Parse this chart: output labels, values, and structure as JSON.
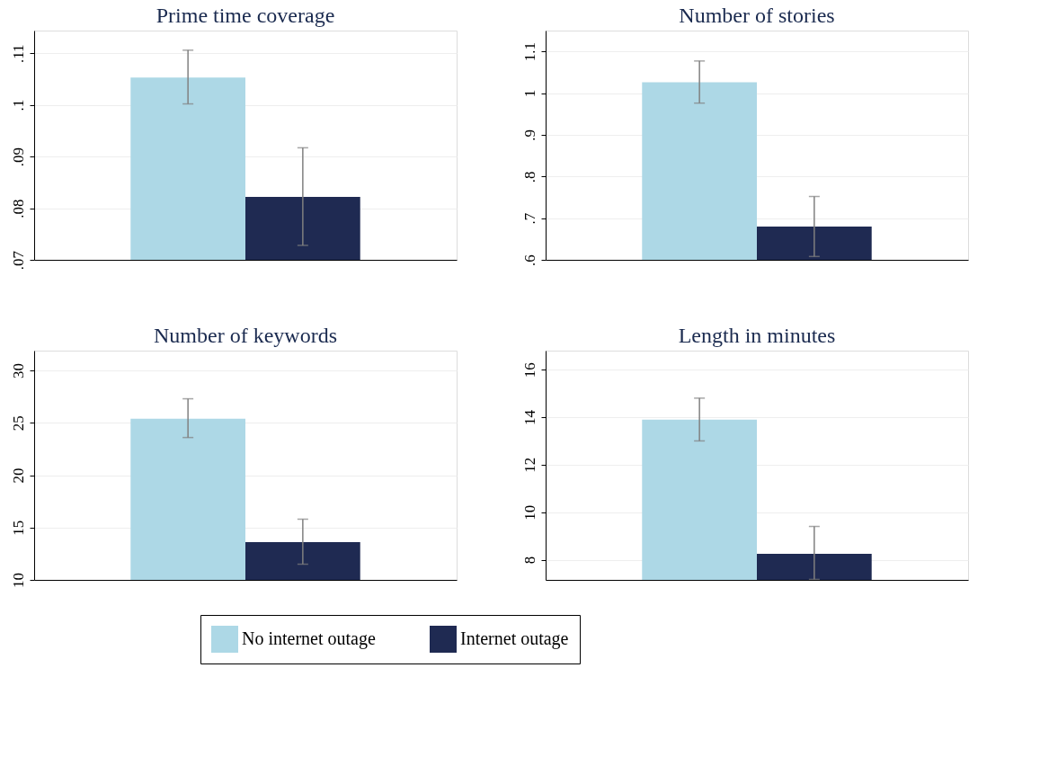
{
  "chart_data": [
    {
      "type": "bar",
      "title": "Prime time coverage",
      "legend": "bottom",
      "categories": [
        null
      ],
      "ylim": [
        0.07,
        0.1144
      ],
      "yticks": [
        {
          "value": 0.07,
          "label": ".07"
        },
        {
          "value": 0.08,
          "label": ".08"
        },
        {
          "value": 0.09,
          "label": ".09"
        },
        {
          "value": 0.1,
          "label": ".1"
        },
        {
          "value": 0.11,
          "label": ".11"
        }
      ],
      "grid": "y",
      "tick_labels": "y",
      "series": [
        {
          "name": "No internet outage",
          "color": "#add8e6",
          "values": [
            0.1053
          ],
          "errors": [
            [
              0.1002,
              0.1106
            ]
          ]
        },
        {
          "name": "Internet outage",
          "color": "#1f2a52",
          "values": [
            0.0822
          ],
          "errors": [
            [
              0.0728,
              0.0917
            ]
          ]
        }
      ]
    },
    {
      "type": "bar",
      "title": "Number of stories",
      "categories": [
        null
      ],
      "ylim": [
        0.6,
        1.15
      ],
      "yticks": [
        {
          "value": 0.6,
          "label": ".6"
        },
        {
          "value": 0.7,
          "label": ".7"
        },
        {
          "value": 0.8,
          "label": ".8"
        },
        {
          "value": 0.9,
          "label": ".9"
        },
        {
          "value": 1,
          "label": "1"
        },
        {
          "value": 1.1,
          "label": "1.1"
        }
      ],
      "grid": "y",
      "tick_labels": "y",
      "series": [
        {
          "name": "No internet outage",
          "color": "#add8e6",
          "values": [
            1.026
          ],
          "errors": [
            [
              0.976,
              1.077
            ]
          ]
        },
        {
          "name": "Internet outage",
          "color": "#1f2a52",
          "values": [
            0.68
          ],
          "errors": [
            [
              0.608,
              0.752
            ]
          ]
        }
      ]
    },
    {
      "type": "bar",
      "title": "Number of keywords",
      "categories": [
        null
      ],
      "ylim": [
        10,
        31.9
      ],
      "yticks": [
        10,
        15,
        20,
        25,
        30
      ],
      "grid": "y",
      "tick_labels": "y",
      "series": [
        {
          "name": "No internet outage",
          "color": "#add8e6",
          "values": [
            25.4
          ],
          "errors": [
            [
              23.6,
              27.3
            ]
          ]
        },
        {
          "name": "Internet outage",
          "color": "#1f2a52",
          "values": [
            13.6
          ],
          "errors": [
            [
              11.5,
              15.8
            ]
          ]
        }
      ]
    },
    {
      "type": "bar",
      "title": "Length in minutes",
      "categories": [
        null
      ],
      "ylim": [
        7.15,
        16.8
      ],
      "yticks": [
        8,
        10,
        12,
        14,
        16
      ],
      "grid": "y",
      "tick_labels": "y",
      "series": [
        {
          "name": "No internet outage",
          "color": "#add8e6",
          "values": [
            13.9
          ],
          "errors": [
            [
              13.0,
              14.8
            ]
          ]
        },
        {
          "name": "Internet outage",
          "color": "#1f2a52",
          "values": [
            8.25
          ],
          "errors": [
            [
              7.17,
              9.4
            ]
          ]
        }
      ]
    }
  ]
}
